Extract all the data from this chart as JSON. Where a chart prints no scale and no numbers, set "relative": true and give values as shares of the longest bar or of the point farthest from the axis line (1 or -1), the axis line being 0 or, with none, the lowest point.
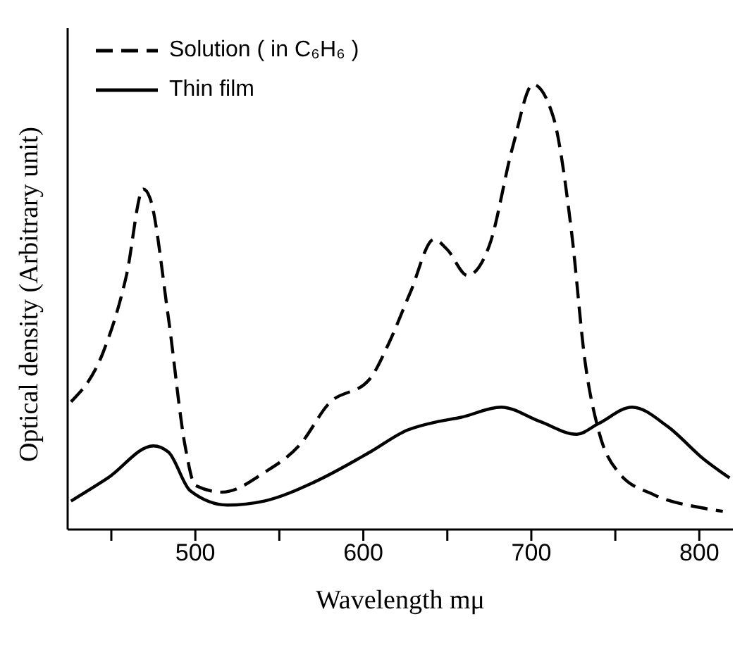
{
  "chart_data": {
    "type": "line",
    "relative": true,
    "xlabel": "Wavelength mμ",
    "ylabel": "Optical density (Arbitrary unit)",
    "xlim": [
      424,
      820
    ],
    "xticks": [
      {
        "value": 450,
        "label": null
      },
      500,
      {
        "value": 550,
        "label": null
      },
      600,
      {
        "value": 650,
        "label": null
      },
      700,
      {
        "value": 750,
        "label": null
      },
      800
    ],
    "legend": "top left",
    "marker": "none",
    "series": [
      {
        "name": "Solution ( in C₆H₆ )",
        "color": "#000000",
        "line_style": "dashed",
        "x": [
          426,
          445,
          459,
          469,
          473,
          484,
          494,
          500,
          516,
          541,
          563,
          579,
          604,
          615,
          628,
          642,
          650,
          662,
          675,
          689,
          701,
          713,
          724,
          732,
          740,
          752,
          773,
          801,
          814
        ],
        "values": [
          0.287,
          0.397,
          0.571,
          0.765,
          0.745,
          0.475,
          0.186,
          0.099,
          0.084,
          0.128,
          0.194,
          0.281,
          0.339,
          0.417,
          0.533,
          0.652,
          0.629,
          0.571,
          0.638,
          0.861,
          1,
          0.928,
          0.667,
          0.377,
          0.223,
          0.128,
          0.078,
          0.049,
          0.041
        ]
      },
      {
        "name": "Thin film",
        "color": "#000000",
        "line_style": "solid",
        "x": [
          426,
          448,
          475,
          484,
          497,
          519,
          541,
          571,
          604,
          626,
          645,
          658,
          682,
          705,
          727,
          740,
          760,
          781,
          803,
          818
        ],
        "values": [
          0.064,
          0.116,
          0.188,
          0.174,
          0.087,
          0.055,
          0.064,
          0.107,
          0.174,
          0.223,
          0.243,
          0.252,
          0.275,
          0.243,
          0.214,
          0.238,
          0.275,
          0.232,
          0.157,
          0.116
        ]
      }
    ]
  }
}
